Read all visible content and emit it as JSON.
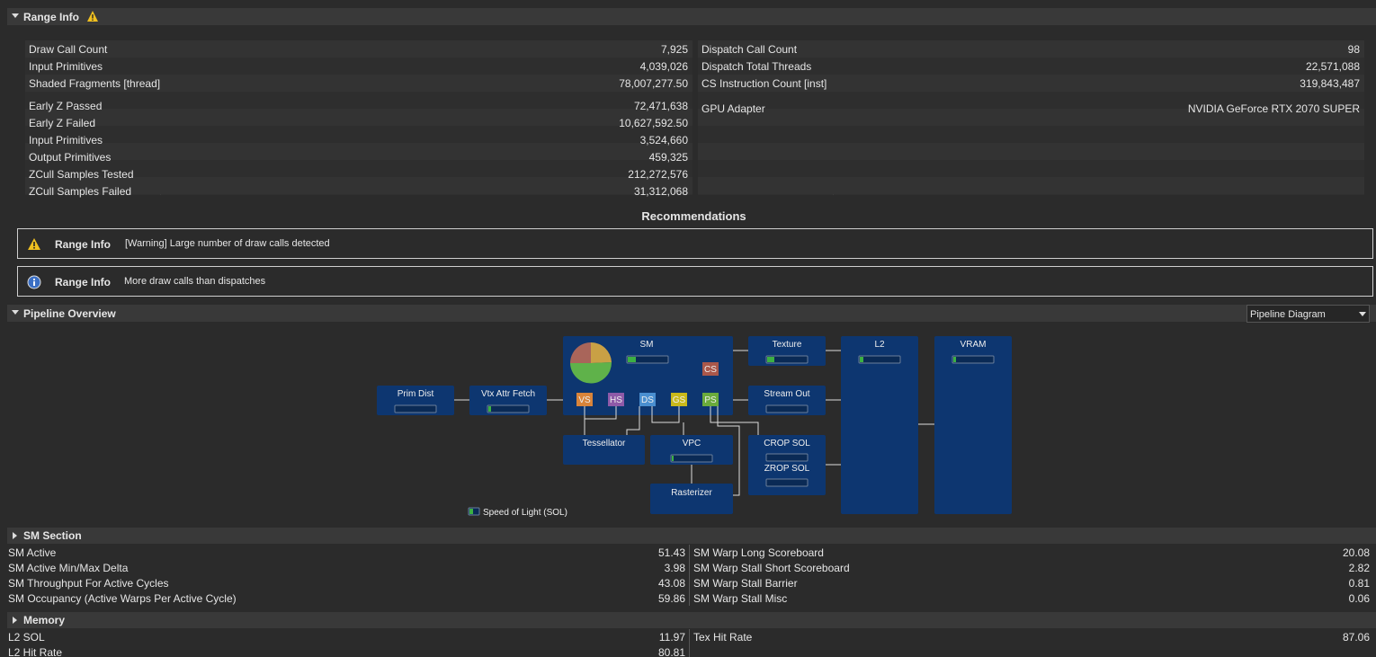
{
  "range_info": {
    "title": "Range Info",
    "left": [
      {
        "label": "Draw Call Count",
        "value": "7,925"
      },
      {
        "label": "Input Primitives",
        "value": "4,039,026"
      },
      {
        "label": "Shaded Fragments [thread]",
        "value": "78,007,277.50"
      },
      {
        "label": "Early Z Passed",
        "value": "72,471,638"
      },
      {
        "label": "Early Z Failed",
        "value": "10,627,592.50"
      },
      {
        "label": "Input Primitives",
        "value": "3,524,660"
      },
      {
        "label": "Output Primitives",
        "value": "459,325"
      },
      {
        "label": "ZCull Samples Tested",
        "value": "212,272,576"
      },
      {
        "label": "ZCull Samples Failed",
        "value": "31,312,068"
      }
    ],
    "right": [
      {
        "label": "Dispatch Call Count",
        "value": "98"
      },
      {
        "label": "Dispatch Total Threads",
        "value": "22,571,088"
      },
      {
        "label": "CS Instruction Count [inst]",
        "value": "319,843,487"
      },
      {
        "label": "GPU Adapter",
        "value": "NVIDIA GeForce RTX 2070 SUPER"
      }
    ]
  },
  "recommendations": {
    "title": "Recommendations",
    "items": [
      {
        "source": "Range Info",
        "text": "[Warning] Large number of draw calls detected"
      },
      {
        "source": "Range Info",
        "text": "More draw calls than dispatches"
      }
    ]
  },
  "pipeline": {
    "title": "Pipeline Overview",
    "view": "Pipeline Diagram",
    "nodes": [
      "Prim Dist",
      "Vtx Attr Fetch",
      "SM",
      "Texture",
      "Stream Out",
      "L2",
      "VRAM",
      "Tessellator",
      "VPC",
      "Rasterizer",
      "CROP SOL",
      "ZROP SOL"
    ],
    "stages": [
      "VS",
      "HS",
      "DS",
      "GS",
      "PS",
      "CS"
    ],
    "legend": "Speed of Light (SOL)"
  },
  "sm_section": {
    "title": "SM Section",
    "left": [
      {
        "label": "SM Active",
        "value": "51.43"
      },
      {
        "label": "SM Active Min/Max Delta",
        "value": "3.98"
      },
      {
        "label": "SM Throughput For Active Cycles",
        "value": "43.08"
      },
      {
        "label": "SM Occupancy (Active Warps Per Active Cycle)",
        "value": "59.86"
      }
    ],
    "right": [
      {
        "label": "SM Warp Long Scoreboard",
        "value": "20.08"
      },
      {
        "label": "SM Warp Stall Short Scoreboard",
        "value": "2.82"
      },
      {
        "label": "SM Warp Stall Barrier",
        "value": "0.81"
      },
      {
        "label": "SM Warp Stall Misc",
        "value": "0.06"
      }
    ]
  },
  "memory": {
    "title": "Memory",
    "left": [
      {
        "label": "L2 SOL",
        "value": "11.97"
      },
      {
        "label": "L2 Hit Rate",
        "value": "80.81"
      }
    ],
    "right": [
      {
        "label": "Tex Hit Rate",
        "value": "87.06"
      }
    ]
  }
}
